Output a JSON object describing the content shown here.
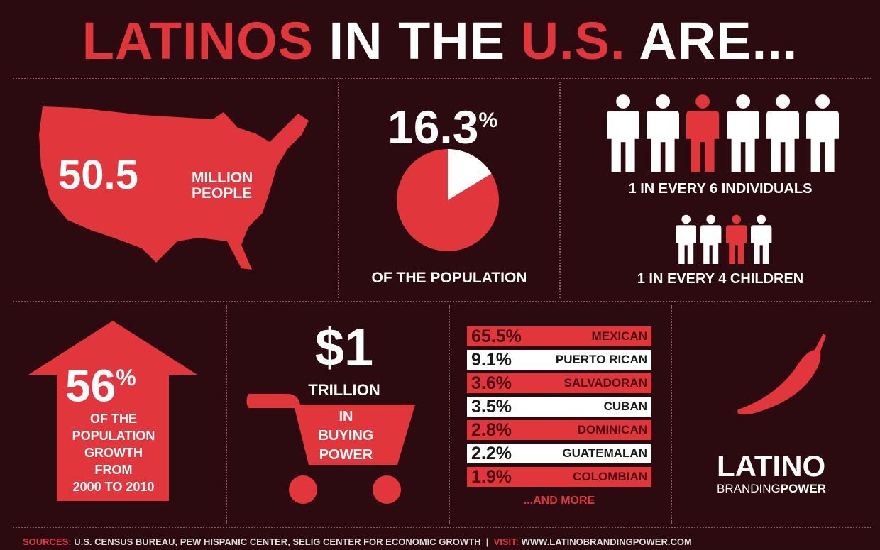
{
  "title": {
    "part1": "LATINOS",
    "part2": " IN THE ",
    "part3": "U.S.",
    "part4": " ARE..."
  },
  "population": {
    "number": "50.5",
    "unit_line1": "MILLION",
    "unit_line2": "PEOPLE"
  },
  "share": {
    "value": "16.3",
    "percent_sign": "%",
    "caption": "OF THE POPULATION",
    "fraction": 0.163
  },
  "individuals": {
    "caption": "1 IN EVERY 6 INDIVIDUALS",
    "total": 6,
    "highlighted_index": 2
  },
  "children": {
    "caption": "1 IN EVERY 4 CHILDREN",
    "total": 4,
    "highlighted_index": 2
  },
  "growth": {
    "value": "56",
    "percent_sign": "%",
    "lines": [
      "OF THE",
      "POPULATION",
      "GROWTH",
      "FROM",
      "2000 TO 2010"
    ]
  },
  "buying": {
    "value": "$1",
    "unit": "TRILLION",
    "lines": [
      "IN",
      "BUYING",
      "POWER"
    ]
  },
  "origins": {
    "rows": [
      {
        "pct": "65.5%",
        "name": "MEXICAN"
      },
      {
        "pct": "9.1%",
        "name": "PUERTO RICAN"
      },
      {
        "pct": "3.6%",
        "name": "SALVADORAN"
      },
      {
        "pct": "3.5%",
        "name": "CUBAN"
      },
      {
        "pct": "2.8%",
        "name": "DOMINICAN"
      },
      {
        "pct": "2.2%",
        "name": "GUATEMALAN"
      },
      {
        "pct": "1.9%",
        "name": "COLOMBIAN"
      }
    ],
    "more": "...AND MORE"
  },
  "logo": {
    "line1": "LATINO",
    "line2a": "BRANDING",
    "line2b": "POWER"
  },
  "footer": {
    "sources_label": "SOURCES:",
    "sources": " U.S. CENSUS BUREAU, PEW HISPANIC CENTER, SELIG CENTER FOR ECONOMIC GROWTH  |  ",
    "visit_label": "VISIT:",
    "visit": " WWW.LATINOBRANDINGPOWER.COM"
  },
  "colors": {
    "background": "#2b0b0f",
    "accent": "#e2363d",
    "white": "#ffffff"
  }
}
